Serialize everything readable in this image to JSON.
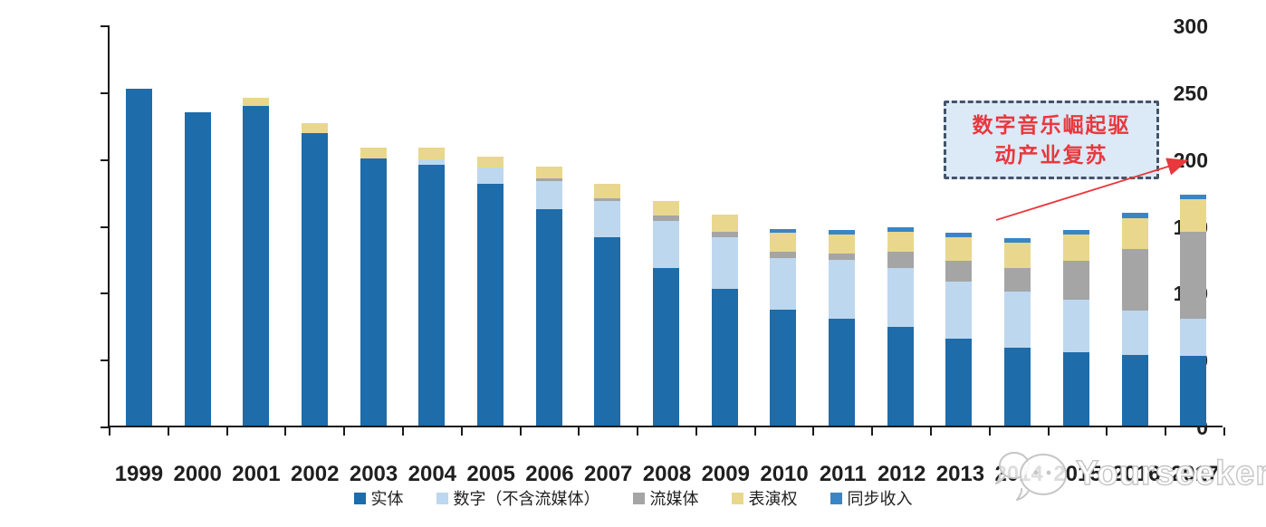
{
  "chart_data": {
    "type": "bar",
    "stacked": true,
    "title": "",
    "categories": [
      "1999",
      "2000",
      "2001",
      "2002",
      "2003",
      "2004",
      "2005",
      "2006",
      "2007",
      "2008",
      "2009",
      "2010",
      "2011",
      "2012",
      "2013",
      "2014",
      "2015",
      "2016",
      "2017"
    ],
    "series": [
      {
        "name": "实体",
        "color": "#1e6ca9",
        "values": [
          252,
          234,
          239,
          219,
          200,
          195,
          181,
          162,
          141,
          118,
          102,
          87,
          80,
          74,
          65,
          58,
          55,
          53,
          52
        ]
      },
      {
        "name": "数字（不含流媒体）",
        "color": "#bdd7ee",
        "values": [
          0,
          0,
          0,
          0,
          0,
          4,
          12,
          21,
          27,
          35,
          39,
          38,
          44,
          44,
          43,
          42,
          39,
          33,
          28
        ]
      },
      {
        "name": "流媒体",
        "color": "#a5a5a5",
        "values": [
          0,
          0,
          0,
          0,
          0,
          0,
          0,
          2,
          2,
          4,
          4,
          5,
          5,
          12,
          15,
          18,
          29,
          46,
          65
        ]
      },
      {
        "name": "表演权",
        "color": "#e9d78d",
        "values": [
          0,
          0,
          6,
          7,
          8,
          9,
          8,
          9,
          11,
          11,
          13,
          14,
          14,
          15,
          18,
          19,
          20,
          23,
          24
        ]
      },
      {
        "name": "同步收入",
        "color": "#3a85c5",
        "values": [
          0,
          0,
          0,
          0,
          0,
          0,
          0,
          0,
          0,
          0,
          0,
          3,
          3,
          3,
          3,
          3,
          3,
          4,
          4
        ]
      }
    ],
    "ylim": [
      0,
      300
    ],
    "yticks": [
      0,
      50,
      100,
      150,
      200,
      250,
      300
    ],
    "xlabel": "",
    "ylabel": "",
    "grid": false,
    "legend_position": "bottom"
  },
  "annotation": {
    "text_line1": "数字音乐崛起驱",
    "text_line2": "动产业复苏",
    "text_color": "#e8383d",
    "box_fill": "#dce9f7",
    "box_border": "#44546a",
    "arrow_color": "#e8383d"
  },
  "watermark": {
    "text": "Yourseeker"
  },
  "style": {
    "axis_color": "#1a1a1a",
    "label_color": "#1f1f1f"
  }
}
